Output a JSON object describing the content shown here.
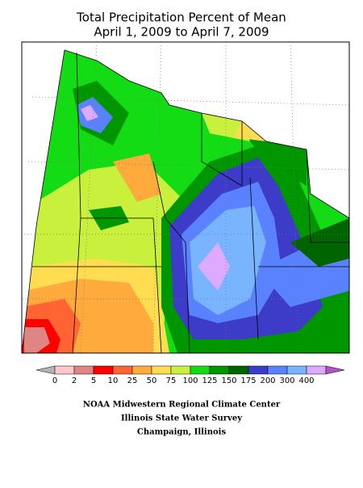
{
  "title": {
    "line1": "Total Precipitation Percent of Mean",
    "line2": "April 1, 2009 to April 7, 2009"
  },
  "legend": {
    "labels": [
      "0",
      "2",
      "5",
      "10",
      "25",
      "50",
      "75",
      "100",
      "125",
      "150",
      "175",
      "200",
      "300",
      "400"
    ],
    "colors": [
      "#b4b4b4",
      "#ffc8c8",
      "#e08484",
      "#ff0000",
      "#ff6432",
      "#ffaa3c",
      "#ffdc50",
      "#c8f03c",
      "#14dc14",
      "#009600",
      "#006400",
      "#3c3cc8",
      "#5a82ff",
      "#78b4ff",
      "#dcaaff",
      "#b450c8"
    ]
  },
  "footer": {
    "line1": "NOAA Midwestern Regional Climate Center",
    "line2": "Illinois State Water Survey",
    "line3": "Champaign, Illinois"
  }
}
